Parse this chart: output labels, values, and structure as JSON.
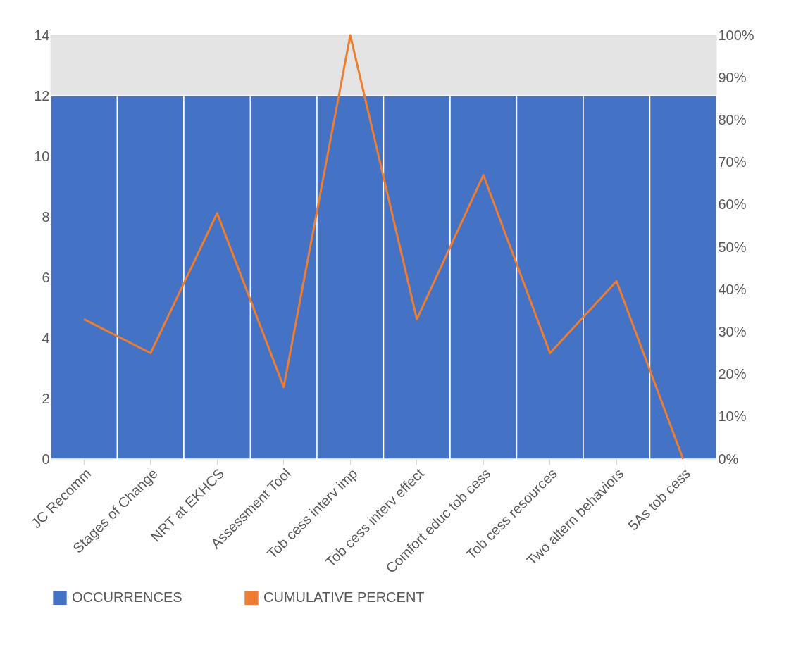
{
  "chart_data": {
    "type": "bar",
    "categories": [
      "JC Recomm",
      "Stages of Change",
      "NRT at EKHCS",
      "Assessment Tool",
      "Tob cess interv imp",
      "Tob cess interv effect",
      "Comfort educ tob cess",
      "Tob cess resources",
      "Two altern behaviors",
      "5As tob cess"
    ],
    "series": [
      {
        "name": "OCCURRENCES",
        "color": "#4472c4",
        "values": [
          12,
          12,
          12,
          12,
          12,
          12,
          12,
          12,
          12,
          12
        ]
      },
      {
        "name": "CUMULATIVE PERCENT",
        "color": "#ed7d31",
        "type": "line",
        "axis": "y2",
        "values": [
          33,
          25,
          58,
          17,
          100,
          33,
          67,
          25,
          42,
          0
        ]
      }
    ],
    "ylim": [
      0,
      14
    ],
    "yticks": [
      0,
      2,
      4,
      6,
      8,
      10,
      12,
      14
    ],
    "y2lim": [
      0,
      100
    ],
    "y2ticks": [
      {
        "value": 0,
        "label": "0%"
      },
      {
        "value": 10,
        "label": "10%"
      },
      {
        "value": 20,
        "label": "20%"
      },
      {
        "value": 30,
        "label": "30%"
      },
      {
        "value": 40,
        "label": "40%"
      },
      {
        "value": 50,
        "label": "50%"
      },
      {
        "value": 60,
        "label": "60%"
      },
      {
        "value": 70,
        "label": "70%"
      },
      {
        "value": 80,
        "label": "80%"
      },
      {
        "value": 90,
        "label": "90%"
      },
      {
        "value": 100,
        "label": "100%"
      }
    ],
    "bands": [
      {
        "axis": "y",
        "from": 12,
        "to": 14,
        "color": "#e4e4e4"
      }
    ],
    "legend": "bottom"
  }
}
